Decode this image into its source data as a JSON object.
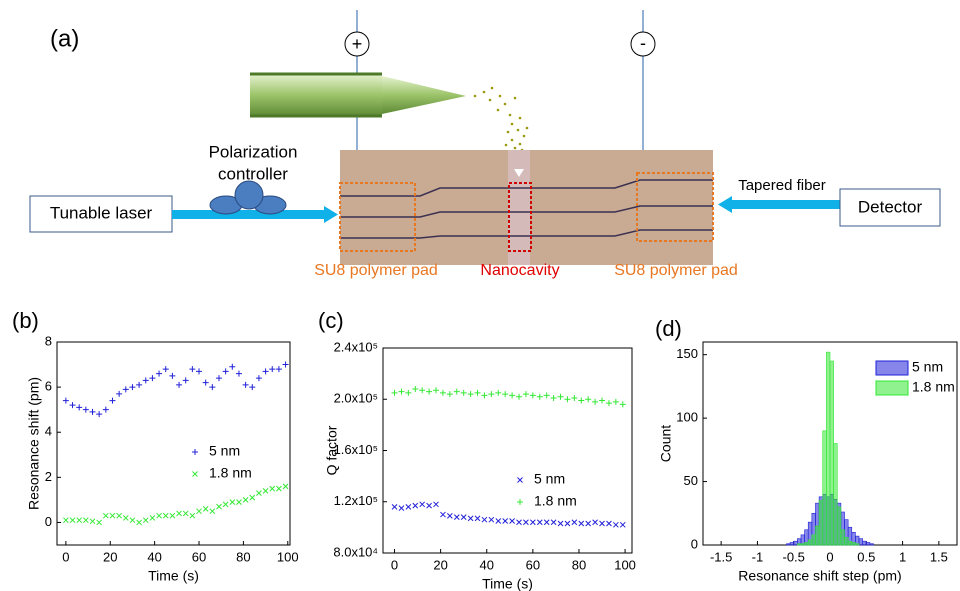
{
  "diagram": {
    "panel_label": "(a)",
    "plus": "+",
    "minus": "-",
    "polarization_controller": [
      "Polarization",
      "controller"
    ],
    "tunable_laser": "Tunable laser",
    "tapered_fiber": "Tapered fiber",
    "detector": "Detector",
    "labels": [
      "SU8 polymer pad",
      "Nanocavity",
      "SU8 polymer pad"
    ]
  },
  "chart_data": [
    {
      "type": "scatter",
      "label": "(b)",
      "x_label": "Time (s)",
      "y_label": "Resonance shift (pm)",
      "x": [
        0,
        3,
        6,
        9,
        12,
        15,
        18,
        21,
        24,
        27,
        30,
        33,
        36,
        39,
        42,
        45,
        48,
        51,
        54,
        57,
        60,
        63,
        66,
        69,
        72,
        75,
        78,
        81,
        84,
        87,
        90,
        93,
        96,
        99
      ],
      "series": [
        {
          "name": "5 nm",
          "color": "#2020d8",
          "marker": "+",
          "values": [
            5.4,
            5.2,
            5.1,
            5.0,
            4.9,
            4.8,
            5.0,
            5.4,
            5.7,
            5.9,
            6.0,
            6.1,
            6.3,
            6.4,
            6.6,
            6.8,
            6.5,
            6.1,
            6.3,
            6.8,
            6.7,
            6.2,
            6.0,
            6.4,
            6.7,
            6.9,
            6.6,
            6.1,
            6.0,
            6.4,
            6.7,
            6.8,
            6.8,
            7.0
          ]
        },
        {
          "name": "1.8 nm",
          "color": "#33e833",
          "marker": "x",
          "values": [
            0.1,
            0.1,
            0.1,
            0.1,
            0.05,
            0.0,
            0.3,
            0.3,
            0.3,
            0.2,
            0.1,
            0.0,
            0.1,
            0.2,
            0.3,
            0.3,
            0.3,
            0.4,
            0.4,
            0.3,
            0.5,
            0.6,
            0.5,
            0.7,
            0.8,
            0.9,
            0.9,
            1.0,
            1.1,
            1.3,
            1.4,
            1.5,
            1.5,
            1.6
          ]
        }
      ],
      "xlim": [
        -4,
        101
      ],
      "xticks": [
        0,
        20,
        40,
        60,
        80,
        100
      ],
      "ylim": [
        -1,
        8
      ],
      "yticks": [
        0,
        2,
        4,
        6,
        8
      ]
    },
    {
      "type": "scatter",
      "label": "(c)",
      "x_label": "Time (s)",
      "y_label": "Q factor",
      "x": [
        0,
        3,
        6,
        9,
        12,
        15,
        18,
        21,
        24,
        27,
        30,
        33,
        36,
        39,
        42,
        45,
        48,
        51,
        54,
        57,
        60,
        63,
        66,
        69,
        72,
        75,
        78,
        81,
        84,
        87,
        90,
        93,
        96,
        99
      ],
      "series": [
        {
          "name": "5 nm",
          "color": "#2020d8",
          "marker": "x",
          "values": [
            116000,
            115000,
            116000,
            117000,
            118000,
            117000,
            118000,
            110000,
            109000,
            108000,
            108000,
            107000,
            107000,
            106000,
            106000,
            105000,
            105000,
            105000,
            104000,
            104000,
            104000,
            104000,
            104000,
            104000,
            103000,
            103000,
            104000,
            103000,
            103000,
            104000,
            103000,
            103000,
            102000,
            102000
          ]
        },
        {
          "name": "1.8 nm",
          "color": "#33e833",
          "marker": "+",
          "values": [
            205000,
            206000,
            205000,
            208000,
            207000,
            206000,
            207000,
            205000,
            204000,
            206000,
            205000,
            204000,
            205000,
            203000,
            204000,
            205000,
            204000,
            203000,
            202000,
            204000,
            203000,
            202000,
            203000,
            201000,
            202000,
            200000,
            201000,
            199000,
            200000,
            198000,
            199000,
            197000,
            198000,
            196000
          ]
        }
      ],
      "xlim": [
        -5,
        103
      ],
      "xticks": [
        0,
        20,
        40,
        60,
        80,
        100
      ],
      "ylim": [
        80000,
        240000
      ],
      "yticks": [
        {
          "value": 80000,
          "label": "8.0x10⁴"
        },
        {
          "value": 120000,
          "label": "1.2x10⁵"
        },
        {
          "value": 160000,
          "label": "1.6x10⁵"
        },
        {
          "value": 200000,
          "label": "2.0x10⁵"
        },
        {
          "value": 240000,
          "label": "2.4x10⁵"
        }
      ]
    },
    {
      "type": "histogram",
      "label": "(d)",
      "x_label": "Resonance shift step (pm)",
      "y_label": "Count",
      "bins": [
        -0.6,
        -0.55,
        -0.5,
        -0.45,
        -0.4,
        -0.35,
        -0.3,
        -0.25,
        -0.2,
        -0.15,
        -0.1,
        -0.05,
        0,
        0.05,
        0.1,
        0.15,
        0.2,
        0.25,
        0.3,
        0.35,
        0.4,
        0.45,
        0.5,
        0.55,
        0.6
      ],
      "series": [
        {
          "name": "5 nm",
          "color": "#2020d8",
          "values": [
            1,
            2,
            3,
            5,
            8,
            12,
            18,
            25,
            33,
            38,
            40,
            38,
            40,
            36,
            33,
            26,
            20,
            14,
            10,
            7,
            5,
            3,
            2,
            1
          ]
        },
        {
          "name": "1.8 nm",
          "color": "#33e833",
          "values": [
            0,
            0,
            0,
            1,
            1,
            2,
            4,
            8,
            15,
            35,
            90,
            152,
            145,
            80,
            30,
            12,
            6,
            3,
            2,
            1,
            0,
            0,
            0,
            0
          ]
        }
      ],
      "xlim": [
        -1.75,
        1.75
      ],
      "xticks": [
        -1.5,
        -1.0,
        -0.5,
        0.0,
        0.5,
        1.0,
        1.5
      ],
      "ylim": [
        0,
        160
      ],
      "yticks": [
        0,
        50,
        100,
        150
      ]
    }
  ]
}
